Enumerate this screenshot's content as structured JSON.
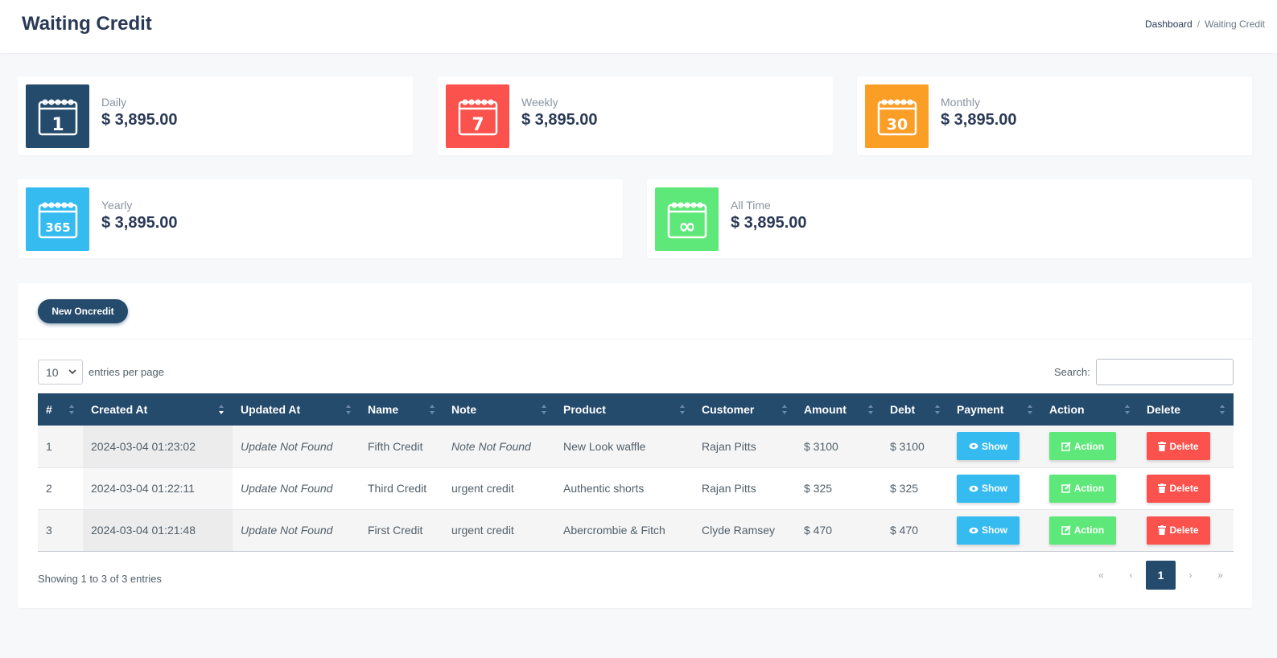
{
  "header": {
    "title": "Waiting Credit",
    "breadcrumb": {
      "home": "Dashboard",
      "separator": "/",
      "current": "Waiting Credit"
    }
  },
  "stats": {
    "daily": {
      "label": "Daily",
      "value": "$ 3,895.00",
      "icon_text": "1",
      "color": "#244a6c"
    },
    "weekly": {
      "label": "Weekly",
      "value": "$ 3,895.00",
      "icon_text": "7",
      "color": "#fb524d"
    },
    "monthly": {
      "label": "Monthly",
      "value": "$ 3,895.00",
      "icon_text": "30",
      "color": "#fb9e26"
    },
    "yearly": {
      "label": "Yearly",
      "value": "$ 3,895.00",
      "icon_text": "365",
      "color": "#35bbf0"
    },
    "alltime": {
      "label": "All Time",
      "value": "$ 3,895.00",
      "icon_text": "∞",
      "color": "#5fe87a"
    }
  },
  "toolbar": {
    "new_label": "New Oncredit"
  },
  "table_controls": {
    "entries_value": "10",
    "entries_label": "entries per page",
    "search_label": "Search:",
    "search_value": ""
  },
  "table": {
    "headers": [
      "#",
      "Created At",
      "Updated At",
      "Name",
      "Note",
      "Product",
      "Customer",
      "Amount",
      "Debt",
      "Payment",
      "Action",
      "Delete"
    ],
    "sorted_column": "Created At",
    "sort_direction": "descending",
    "rows": [
      {
        "id": "1",
        "created": "2024-03-04 01:23:02",
        "updated": "Update Not Found",
        "name": "Fifth Credit",
        "note": "Note Not Found",
        "product": "New Look waffle",
        "customer": "Rajan Pitts",
        "amount": "$ 3100",
        "debt": "$ 3100"
      },
      {
        "id": "2",
        "created": "2024-03-04 01:22:11",
        "updated": "Update Not Found",
        "name": "Third Credit",
        "note": "urgent credit",
        "product": "Authentic shorts",
        "customer": "Rajan Pitts",
        "amount": "$ 325",
        "debt": "$ 325"
      },
      {
        "id": "3",
        "created": "2024-03-04 01:21:48",
        "updated": "Update Not Found",
        "name": "First Credit",
        "note": "urgent credit",
        "product": "Abercrombie & Fitch",
        "customer": "Clyde Ramsey",
        "amount": "$ 470",
        "debt": "$ 470"
      }
    ],
    "buttons": {
      "show": "Show",
      "action": "Action",
      "delete": "Delete"
    },
    "button_colors": {
      "show": "#35bbf0",
      "action": "#5fe87a",
      "delete": "#fb524d"
    },
    "header_color": "#244a6c"
  },
  "footer": {
    "showing": "Showing 1 to 3 of 3 entries",
    "pagination": {
      "first": "«",
      "prev": "‹",
      "current": "1",
      "next": "›",
      "last": "»"
    }
  },
  "icons": {
    "calendar": "calendar-icon",
    "eye": "eye-icon",
    "edit": "edit-icon",
    "trash": "trash-icon",
    "sort": "sort-icon",
    "chevron": "chevron-down-icon"
  }
}
